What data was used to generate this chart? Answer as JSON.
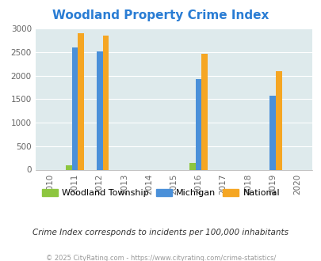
{
  "title": "Woodland Property Crime Index",
  "title_color": "#2a7dd4",
  "years": [
    2010,
    2011,
    2012,
    2013,
    2014,
    2015,
    2016,
    2017,
    2018,
    2019,
    2020
  ],
  "active_years": [
    2011,
    2012,
    2016,
    2019
  ],
  "data": {
    "2011": {
      "woodland": 100,
      "michigan": 2600,
      "national": 2900
    },
    "2012": {
      "woodland": 0,
      "michigan": 2520,
      "national": 2850
    },
    "2016": {
      "woodland": 150,
      "michigan": 1920,
      "national": 2460
    },
    "2019": {
      "woodland": 0,
      "michigan": 1570,
      "national": 2090
    }
  },
  "bar_width": 0.25,
  "colors": {
    "woodland": "#8dc63f",
    "michigan": "#4a90d9",
    "national": "#f5a623"
  },
  "legend_labels": [
    "Woodland Township",
    "Michigan",
    "National"
  ],
  "ylim": [
    0,
    3000
  ],
  "yticks": [
    0,
    500,
    1000,
    1500,
    2000,
    2500,
    3000
  ],
  "bg_color": "#deeaec",
  "grid_color": "#ffffff",
  "note": "Crime Index corresponds to incidents per 100,000 inhabitants",
  "copyright": "© 2025 CityRating.com - https://www.cityrating.com/crime-statistics/",
  "note_color": "#333333",
  "copyright_color": "#999999"
}
